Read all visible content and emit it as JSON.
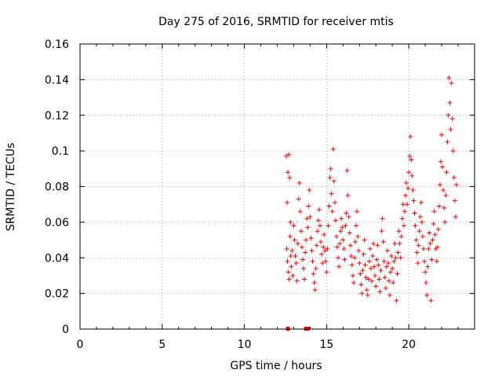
{
  "chart_data": {
    "type": "scatter",
    "title": "Day 275 of 2016, SRMTID for receiver mtis",
    "xlabel": "GPS time / hours",
    "ylabel": "SRMTID / TECUs",
    "xlim": [
      0,
      24
    ],
    "ylim": [
      0,
      0.16
    ],
    "xticks": [
      0,
      5,
      10,
      15,
      20
    ],
    "xtick_labels": [
      "0",
      "5",
      "10",
      "15",
      "20"
    ],
    "yticks": [
      0,
      0.02,
      0.04,
      0.06,
      0.08,
      0.1,
      0.12,
      0.14,
      0.16
    ],
    "ytick_labels": [
      "0",
      "0.02",
      "0.04",
      "0.06",
      "0.08",
      "0.1",
      "0.12",
      "0.14",
      "0.16"
    ],
    "grid": true,
    "marker": "+",
    "marker_color": "#ff0000",
    "series": [
      {
        "name": "SRMTID",
        "color": "#ff0000",
        "points": [
          [
            12.55,
            0.097
          ],
          [
            12.6,
            0.071
          ],
          [
            12.65,
            0.088
          ],
          [
            12.7,
            0.098
          ],
          [
            12.75,
            0.085
          ],
          [
            12.8,
            0.06
          ],
          [
            12.58,
            0.045
          ],
          [
            12.62,
            0.038
          ],
          [
            12.68,
            0.032
          ],
          [
            12.72,
            0.028
          ],
          [
            12.78,
            0.052
          ],
          [
            12.82,
            0.041
          ],
          [
            12.85,
            0.035
          ],
          [
            12.9,
            0.044
          ],
          [
            12.95,
            0.03
          ],
          [
            13.0,
            0.058
          ],
          [
            13.05,
            0.05
          ],
          [
            13.1,
            0.041
          ],
          [
            13.15,
            0.037
          ],
          [
            13.2,
            0.027
          ],
          [
            13.25,
            0.048
          ],
          [
            13.3,
            0.073
          ],
          [
            13.35,
            0.082
          ],
          [
            13.4,
            0.066
          ],
          [
            13.45,
            0.055
          ],
          [
            13.5,
            0.046
          ],
          [
            13.55,
            0.039
          ],
          [
            13.6,
            0.034
          ],
          [
            13.65,
            0.028
          ],
          [
            13.7,
            0.043
          ],
          [
            13.75,
            0.05
          ],
          [
            13.8,
            0.062
          ],
          [
            13.85,
            0.057
          ],
          [
            13.9,
            0.069
          ],
          [
            13.95,
            0.078
          ],
          [
            14.0,
            0.063
          ],
          [
            14.05,
            0.051
          ],
          [
            14.1,
            0.044
          ],
          [
            14.15,
            0.038
          ],
          [
            14.2,
            0.031
          ],
          [
            14.25,
            0.026
          ],
          [
            14.3,
            0.022
          ],
          [
            14.35,
            0.034
          ],
          [
            14.4,
            0.047
          ],
          [
            14.45,
            0.055
          ],
          [
            14.5,
            0.061
          ],
          [
            14.55,
            0.067
          ],
          [
            14.6,
            0.058
          ],
          [
            14.65,
            0.049
          ],
          [
            14.7,
            0.042
          ],
          [
            14.75,
            0.037
          ],
          [
            14.8,
            0.046
          ],
          [
            14.85,
            0.053
          ],
          [
            14.9,
            0.044
          ],
          [
            14.95,
            0.038
          ],
          [
            15.0,
            0.032
          ],
          [
            15.05,
            0.045
          ],
          [
            15.1,
            0.058
          ],
          [
            15.15,
            0.069
          ],
          [
            15.2,
            0.085
          ],
          [
            15.25,
            0.09
          ],
          [
            15.3,
            0.076
          ],
          [
            15.35,
            0.066
          ],
          [
            15.4,
            0.101
          ],
          [
            15.45,
            0.083
          ],
          [
            15.5,
            0.071
          ],
          [
            15.55,
            0.061
          ],
          [
            15.6,
            0.052
          ],
          [
            15.65,
            0.046
          ],
          [
            15.7,
            0.04
          ],
          [
            15.75,
            0.035
          ],
          [
            15.8,
            0.048
          ],
          [
            15.85,
            0.055
          ],
          [
            15.9,
            0.062
          ],
          [
            15.95,
            0.057
          ],
          [
            16.0,
            0.05
          ],
          [
            16.05,
            0.045
          ],
          [
            16.1,
            0.039
          ],
          [
            16.15,
            0.058
          ],
          [
            16.2,
            0.065
          ],
          [
            16.25,
            0.089
          ],
          [
            16.3,
            0.075
          ],
          [
            16.35,
            0.063
          ],
          [
            16.4,
            0.054
          ],
          [
            16.45,
            0.047
          ],
          [
            16.5,
            0.041
          ],
          [
            16.55,
            0.036
          ],
          [
            16.6,
            0.03
          ],
          [
            16.65,
            0.026
          ],
          [
            16.7,
            0.04
          ],
          [
            16.75,
            0.049
          ],
          [
            16.8,
            0.058
          ],
          [
            16.85,
            0.066
          ],
          [
            16.9,
            0.052
          ],
          [
            16.95,
            0.044
          ],
          [
            17.0,
            0.037
          ],
          [
            17.05,
            0.031
          ],
          [
            17.1,
            0.025
          ],
          [
            17.15,
            0.02
          ],
          [
            17.2,
            0.033
          ],
          [
            17.25,
            0.042
          ],
          [
            17.3,
            0.05
          ],
          [
            17.35,
            0.036
          ],
          [
            17.4,
            0.029
          ],
          [
            17.45,
            0.022
          ],
          [
            17.5,
            0.019
          ],
          [
            17.55,
            0.028
          ],
          [
            17.6,
            0.038
          ],
          [
            17.65,
            0.045
          ],
          [
            17.7,
            0.034
          ],
          [
            17.75,
            0.027
          ],
          [
            17.8,
            0.041
          ],
          [
            17.85,
            0.048
          ],
          [
            17.9,
            0.035
          ],
          [
            17.95,
            0.03
          ],
          [
            18.0,
            0.024
          ],
          [
            18.05,
            0.039
          ],
          [
            18.1,
            0.047
          ],
          [
            18.15,
            0.036
          ],
          [
            18.2,
            0.028
          ],
          [
            18.25,
            0.021
          ],
          [
            18.3,
            0.033
          ],
          [
            18.35,
            0.055
          ],
          [
            18.4,
            0.062
          ],
          [
            18.45,
            0.049
          ],
          [
            18.5,
            0.038
          ],
          [
            18.55,
            0.029
          ],
          [
            18.6,
            0.023
          ],
          [
            18.65,
            0.035
          ],
          [
            18.7,
            0.044
          ],
          [
            18.75,
            0.037
          ],
          [
            18.8,
            0.027
          ],
          [
            18.85,
            0.019
          ],
          [
            18.9,
            0.032
          ],
          [
            18.95,
            0.041
          ],
          [
            19.0,
            0.034
          ],
          [
            19.05,
            0.026
          ],
          [
            19.1,
            0.038
          ],
          [
            19.15,
            0.048
          ],
          [
            19.2,
            0.04
          ],
          [
            19.25,
            0.016
          ],
          [
            19.3,
            0.031
          ],
          [
            19.35,
            0.043
          ],
          [
            19.4,
            0.055
          ],
          [
            19.45,
            0.048
          ],
          [
            19.5,
            0.04
          ],
          [
            19.55,
            0.052
          ],
          [
            19.6,
            0.062
          ],
          [
            19.65,
            0.07
          ],
          [
            19.7,
            0.058
          ],
          [
            19.75,
            0.066
          ],
          [
            19.8,
            0.075
          ],
          [
            19.85,
            0.082
          ],
          [
            19.9,
            0.07
          ],
          [
            19.95,
            0.079
          ],
          [
            20.0,
            0.088
          ],
          [
            20.05,
            0.097
          ],
          [
            20.1,
            0.108
          ],
          [
            20.15,
            0.095
          ],
          [
            20.2,
            0.086
          ],
          [
            20.25,
            0.078
          ],
          [
            20.3,
            0.072
          ],
          [
            20.35,
            0.065
          ],
          [
            20.4,
            0.058
          ],
          [
            20.45,
            0.05
          ],
          [
            20.5,
            0.043
          ],
          [
            20.55,
            0.037
          ],
          [
            20.6,
            0.047
          ],
          [
            20.65,
            0.055
          ],
          [
            20.7,
            0.063
          ],
          [
            20.75,
            0.071
          ],
          [
            20.8,
            0.06
          ],
          [
            20.85,
            0.052
          ],
          [
            20.9,
            0.045
          ],
          [
            20.95,
            0.038
          ],
          [
            21.0,
            0.032
          ],
          [
            21.05,
            0.026
          ],
          [
            21.1,
            0.019
          ],
          [
            21.15,
            0.035
          ],
          [
            21.2,
            0.045
          ],
          [
            21.25,
            0.054
          ],
          [
            21.3,
            0.048
          ],
          [
            21.35,
            0.016
          ],
          [
            21.4,
            0.039
          ],
          [
            21.45,
            0.05
          ],
          [
            21.5,
            0.059
          ],
          [
            21.55,
            0.066
          ],
          [
            21.6,
            0.053
          ],
          [
            21.65,
            0.045
          ],
          [
            21.7,
            0.038
          ],
          [
            21.75,
            0.046
          ],
          [
            21.8,
            0.056
          ],
          [
            21.85,
            0.069
          ],
          [
            21.9,
            0.081
          ],
          [
            21.95,
            0.094
          ],
          [
            22.0,
            0.109
          ],
          [
            22.05,
            0.091
          ],
          [
            22.1,
            0.078
          ],
          [
            22.15,
            0.068
          ],
          [
            22.2,
            0.06
          ],
          [
            22.25,
            0.075
          ],
          [
            22.3,
            0.088
          ],
          [
            22.35,
            0.105
          ],
          [
            22.4,
            0.12
          ],
          [
            22.45,
            0.141
          ],
          [
            22.5,
            0.127
          ],
          [
            22.55,
            0.112
          ],
          [
            22.6,
            0.138
          ],
          [
            22.65,
            0.118
          ],
          [
            22.7,
            0.1
          ],
          [
            22.75,
            0.085
          ],
          [
            22.8,
            0.072
          ],
          [
            22.85,
            0.063
          ],
          [
            22.9,
            0.081
          ]
        ]
      }
    ],
    "zero_markers_x": [
      12.65,
      13.75,
      13.85
    ]
  }
}
